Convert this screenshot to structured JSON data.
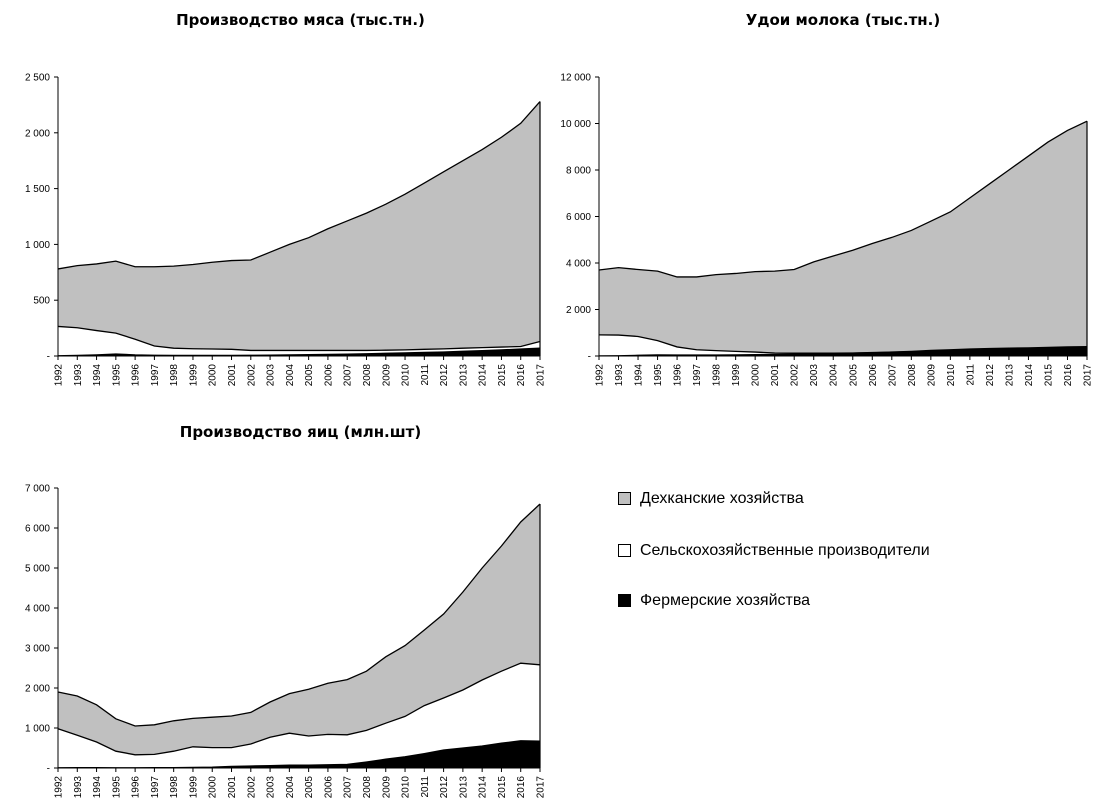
{
  "chart_data": [
    {
      "type": "area",
      "stacked": true,
      "title": "Производство мяса (тыс.тн.)",
      "x": [
        "1992",
        "1993",
        "1994",
        "1995",
        "1996",
        "1997",
        "1998",
        "1999",
        "2000",
        "2001",
        "2002",
        "2003",
        "2004",
        "2005",
        "2006",
        "2007",
        "2008",
        "2009",
        "2010",
        "2011",
        "2012",
        "2013",
        "2014",
        "2015",
        "2016",
        "2017"
      ],
      "ylim": [
        0,
        2500
      ],
      "yticks": [
        0,
        500,
        1000,
        1500,
        2000,
        2500
      ],
      "ytick_labels": [
        "-",
        "500",
        "1 000",
        "1 500",
        "2 000",
        "2 500"
      ],
      "series": [
        {
          "name": "Фермерские хозяйства",
          "color": "#000000",
          "values": [
            2,
            5,
            10,
            18,
            10,
            6,
            5,
            5,
            5,
            5,
            6,
            8,
            10,
            12,
            14,
            16,
            20,
            24,
            28,
            32,
            36,
            42,
            48,
            55,
            62,
            70
          ]
        },
        {
          "name": "Сельскохозяйственные производители",
          "color": "#ffffff",
          "values": [
            263,
            248,
            218,
            187,
            140,
            84,
            65,
            60,
            58,
            55,
            44,
            42,
            40,
            38,
            36,
            34,
            30,
            28,
            27,
            28,
            28,
            28,
            27,
            25,
            23,
            60
          ]
        },
        {
          "name": "Дехканские хозяйства",
          "color": "#c0c0c0",
          "values": [
            515,
            557,
            597,
            645,
            650,
            710,
            735,
            755,
            777,
            795,
            810,
            880,
            950,
            1010,
            1090,
            1160,
            1230,
            1308,
            1395,
            1490,
            1586,
            1680,
            1775,
            1880,
            2000,
            2150
          ]
        }
      ]
    },
    {
      "type": "area",
      "stacked": true,
      "title": "Удои молока (тыс.тн.)",
      "x": [
        "1992",
        "1993",
        "1994",
        "1995",
        "1996",
        "1997",
        "1998",
        "1999",
        "2000",
        "2001",
        "2002",
        "2003",
        "2004",
        "2005",
        "2006",
        "2007",
        "2008",
        "2009",
        "2010",
        "2011",
        "2012",
        "2013",
        "2014",
        "2015",
        "2016",
        "2017"
      ],
      "ylim": [
        0,
        12000
      ],
      "yticks": [
        0,
        2000,
        4000,
        6000,
        8000,
        10000,
        12000
      ],
      "ytick_labels": [
        "-",
        "2 000",
        "4 000",
        "6 000",
        "8 000",
        "10 000",
        "12 000"
      ],
      "series": [
        {
          "name": "Фермерские хозяйства",
          "color": "#000000",
          "values": [
            5,
            10,
            30,
            50,
            40,
            40,
            40,
            50,
            60,
            70,
            80,
            100,
            110,
            120,
            140,
            160,
            180,
            210,
            230,
            260,
            280,
            300,
            320,
            340,
            360,
            380
          ]
        },
        {
          "name": "Сельскохозяйственные производители",
          "color": "#ffffff",
          "values": [
            905,
            890,
            810,
            610,
            350,
            230,
            190,
            150,
            110,
            60,
            40,
            20,
            10,
            10,
            10,
            10,
            20,
            30,
            40,
            40,
            40,
            40,
            30,
            30,
            30,
            20
          ]
        },
        {
          "name": "Дехканские хозяйства",
          "color": "#c0c0c0",
          "values": [
            2790,
            2900,
            2880,
            2990,
            3010,
            3130,
            3270,
            3350,
            3460,
            3520,
            3600,
            3930,
            4180,
            4420,
            4690,
            4930,
            5200,
            5560,
            5930,
            6500,
            7080,
            7660,
            8250,
            8830,
            9310,
            9700
          ]
        }
      ]
    },
    {
      "type": "area",
      "stacked": true,
      "title": "Производство яиц (млн.шт)",
      "x": [
        "1992",
        "1993",
        "1994",
        "1995",
        "1996",
        "1997",
        "1998",
        "1999",
        "2000",
        "2001",
        "2002",
        "2003",
        "2004",
        "2005",
        "2006",
        "2007",
        "2008",
        "2009",
        "2010",
        "2011",
        "2012",
        "2013",
        "2014",
        "2015",
        "2016",
        "2017"
      ],
      "ylim": [
        0,
        7000
      ],
      "yticks": [
        0,
        1000,
        2000,
        3000,
        4000,
        5000,
        6000,
        7000
      ],
      "ytick_labels": [
        "-",
        "1 000",
        "2 000",
        "3 000",
        "4 000",
        "5 000",
        "6 000",
        "7 000"
      ],
      "series": [
        {
          "name": "Фермерские хозяйства",
          "color": "#000000",
          "values": [
            5,
            10,
            10,
            5,
            5,
            10,
            10,
            15,
            20,
            40,
            50,
            60,
            70,
            70,
            80,
            90,
            150,
            220,
            280,
            360,
            450,
            500,
            550,
            620,
            680,
            670
          ]
        },
        {
          "name": "Сельскохозяйственные производители",
          "color": "#ffffff",
          "values": [
            975,
            810,
            640,
            415,
            325,
            330,
            410,
            515,
            490,
            470,
            550,
            710,
            800,
            730,
            760,
            740,
            790,
            900,
            1010,
            1200,
            1300,
            1450,
            1650,
            1800,
            1940,
            1910
          ]
        },
        {
          "name": "Дехканские хозяйства",
          "color": "#c0c0c0",
          "values": [
            920,
            980,
            930,
            810,
            720,
            740,
            760,
            710,
            760,
            790,
            790,
            880,
            990,
            1170,
            1280,
            1380,
            1480,
            1660,
            1770,
            1890,
            2100,
            2450,
            2800,
            3130,
            3530,
            4020
          ]
        }
      ]
    }
  ],
  "legend": {
    "items": [
      {
        "label": "Дехканские хозяйства",
        "color": "#c0c0c0"
      },
      {
        "label": "Сельскохозяйственные производители",
        "color": "#ffffff"
      },
      {
        "label": "Фермерские хозяйства",
        "color": "#000000"
      }
    ]
  }
}
